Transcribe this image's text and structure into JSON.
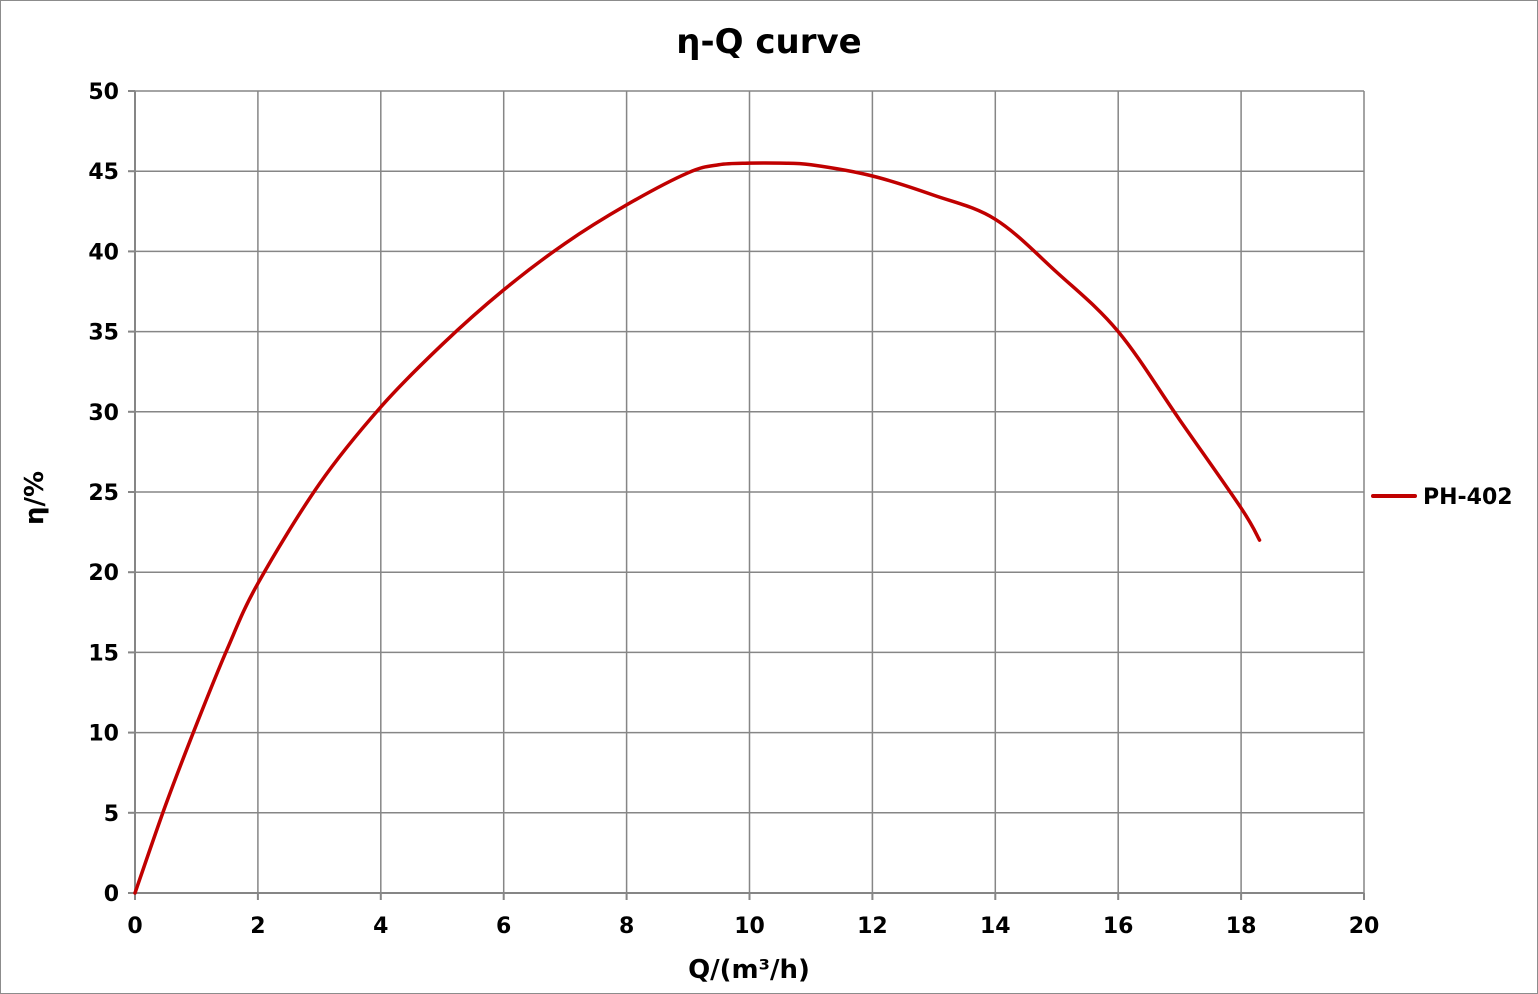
{
  "chart_data": {
    "type": "line",
    "title": "η-Q  curve",
    "xlabel": "Q/(m³/h)",
    "ylabel": "η/%",
    "xlim": [
      0,
      20
    ],
    "ylim": [
      0,
      50
    ],
    "x_ticks": [
      0,
      2,
      4,
      6,
      8,
      10,
      12,
      14,
      16,
      18,
      20
    ],
    "y_ticks": [
      0,
      5,
      10,
      15,
      20,
      25,
      30,
      35,
      40,
      45,
      50
    ],
    "grid": true,
    "legend_position": "right",
    "series": [
      {
        "name": "PH-402",
        "color": "#c00000",
        "x": [
          0,
          0.5,
          1,
          1.5,
          2,
          3,
          4,
          5,
          6,
          7,
          8,
          9,
          9.5,
          10,
          10.5,
          11,
          12,
          13,
          14,
          15,
          16,
          17,
          18,
          18.3
        ],
        "y": [
          0,
          5.5,
          10.5,
          15.2,
          19.3,
          25.5,
          30.3,
          34.2,
          37.6,
          40.5,
          42.9,
          44.9,
          45.4,
          45.5,
          45.5,
          45.4,
          44.7,
          43.5,
          42.0,
          38.7,
          35.0,
          29.5,
          24.0,
          22.0
        ]
      }
    ]
  }
}
